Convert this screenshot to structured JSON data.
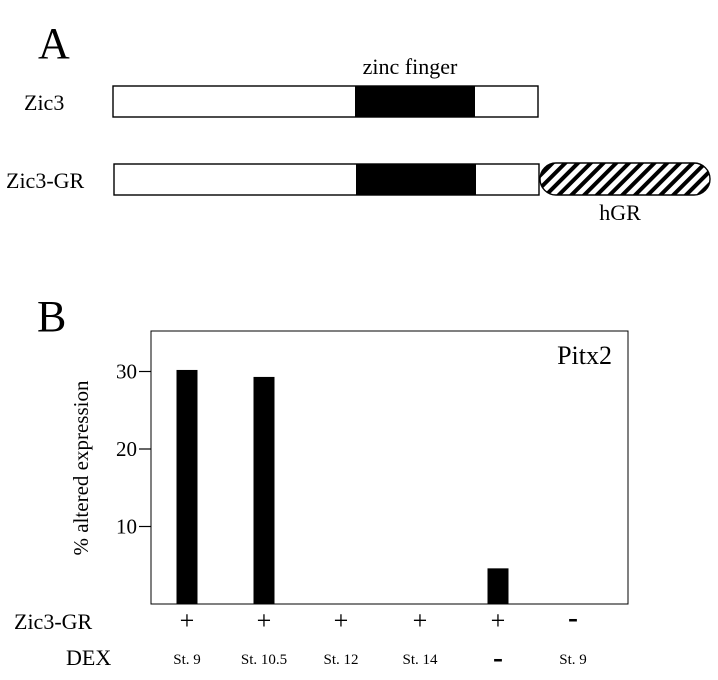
{
  "panel_a": {
    "label": "A",
    "zinc_finger_label": "zinc finger",
    "constructs": [
      {
        "name": "Zic3"
      },
      {
        "name": "Zic3-GR"
      }
    ],
    "gr_domain_label": "hGR"
  },
  "panel_b": {
    "label": "B",
    "row_labels": {
      "construct": "Zic3-GR",
      "treatment": "DEX"
    }
  },
  "chart_data": {
    "type": "bar",
    "title": "Pitx2",
    "ylabel": "% altered expression",
    "xlabel": "",
    "ylim": [
      0,
      34
    ],
    "yticks": [
      10,
      20,
      30
    ],
    "categories": [
      {
        "zic3_gr": "+",
        "dex": "St. 9"
      },
      {
        "zic3_gr": "+",
        "dex": "St. 10.5"
      },
      {
        "zic3_gr": "+",
        "dex": "St. 12"
      },
      {
        "zic3_gr": "+",
        "dex": "St. 14"
      },
      {
        "zic3_gr": "+",
        "dex": "-"
      },
      {
        "zic3_gr": "-",
        "dex": "St. 9"
      }
    ],
    "values": [
      30.2,
      29.3,
      0,
      0,
      4.6,
      0
    ],
    "bar_color": "#000000",
    "grid": false
  }
}
